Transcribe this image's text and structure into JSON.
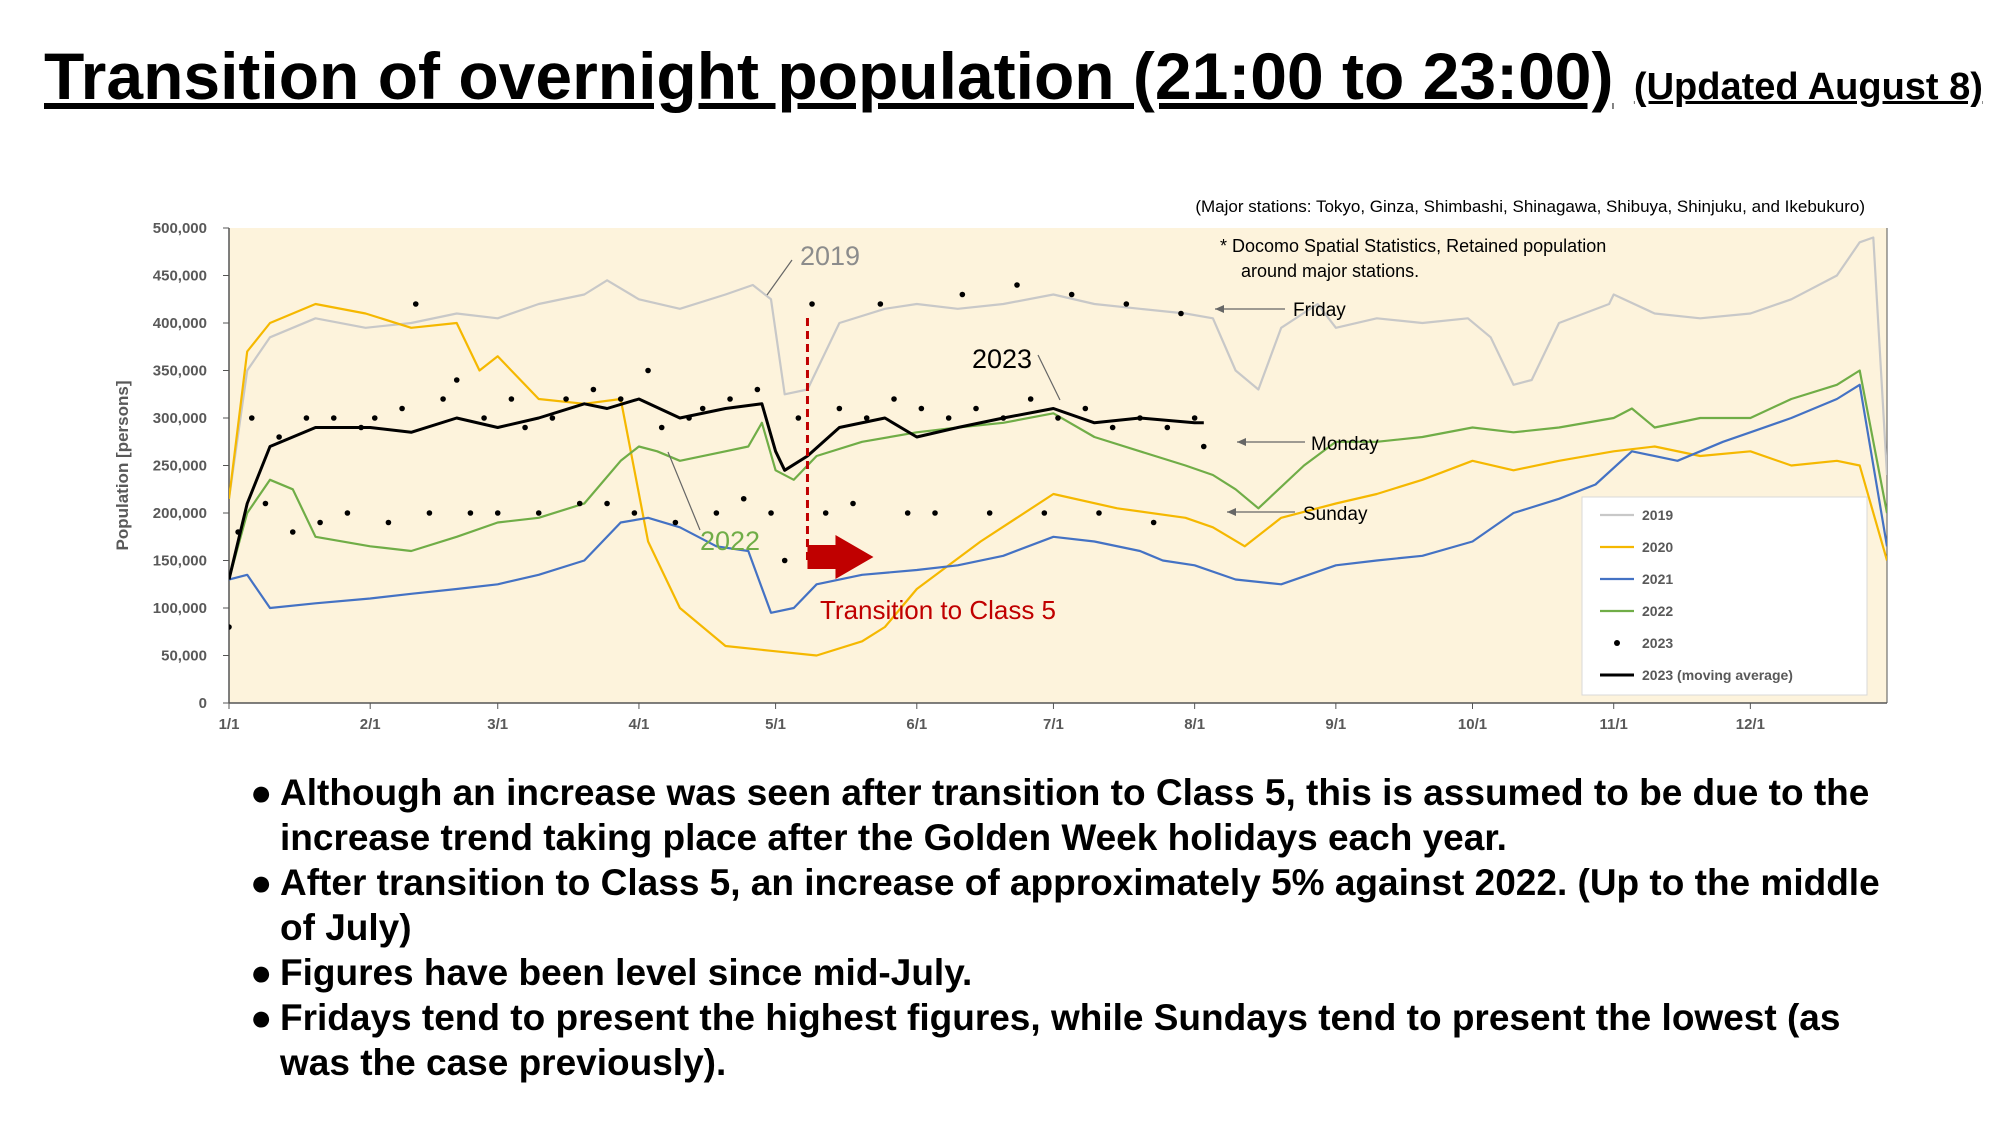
{
  "title": "Transition of overnight population (21:00 to 23:00)",
  "updated": "(Updated August 8)",
  "chart_data": {
    "type": "line",
    "subtitle": "(Major stations: Tokyo, Ginza, Shimbashi, Shinagawa, Shibuya, Shinjuku, and Ikebukuro)",
    "source_note": [
      "*  Docomo Spatial Statistics, Retained population",
      "around major stations."
    ],
    "ylabel": "Population [persons]",
    "ylim": [
      0,
      500000
    ],
    "yticks": [
      0,
      50000,
      100000,
      150000,
      200000,
      250000,
      300000,
      350000,
      400000,
      450000,
      500000
    ],
    "ytick_labels": [
      "0",
      "50,000",
      "100,000",
      "150,000",
      "200,000",
      "250,000",
      "300,000",
      "350,000",
      "400,000",
      "450,000",
      "500,000"
    ],
    "xlim": [
      "1/1",
      "12/31"
    ],
    "xticks": [
      "1/1",
      "2/1",
      "3/1",
      "4/1",
      "5/1",
      "6/1",
      "7/1",
      "8/1",
      "9/1",
      "10/1",
      "11/1",
      "12/1"
    ],
    "grid": false,
    "legend_position": "bottom-right",
    "series": [
      {
        "name": "2019",
        "color": "#c8c8c8",
        "type": "line",
        "x": [
          "1/1",
          "1/5",
          "1/10",
          "1/20",
          "1/31",
          "2/10",
          "2/20",
          "3/1",
          "3/10",
          "3/20",
          "3/25",
          "4/1",
          "4/10",
          "4/20",
          "4/26",
          "4/30",
          "5/3",
          "5/8",
          "5/15",
          "5/25",
          "6/1",
          "6/10",
          "6/20",
          "7/1",
          "7/10",
          "7/20",
          "7/30",
          "8/5",
          "8/10",
          "8/15",
          "8/20",
          "8/28",
          "9/1",
          "9/10",
          "9/20",
          "9/30",
          "10/5",
          "10/10",
          "10/14",
          "10/20",
          "10/31",
          "11/1",
          "11/10",
          "11/20",
          "12/1",
          "12/10",
          "12/20",
          "12/25",
          "12/28",
          "12/31"
        ],
        "values": [
          215000,
          350000,
          385000,
          405000,
          395000,
          400000,
          410000,
          405000,
          420000,
          430000,
          445000,
          425000,
          415000,
          430000,
          440000,
          425000,
          325000,
          330000,
          400000,
          415000,
          420000,
          415000,
          420000,
          430000,
          420000,
          415000,
          410000,
          405000,
          350000,
          330000,
          395000,
          420000,
          395000,
          405000,
          400000,
          405000,
          385000,
          335000,
          340000,
          400000,
          420000,
          430000,
          410000,
          405000,
          410000,
          425000,
          450000,
          485000,
          490000,
          240000
        ]
      },
      {
        "name": "2020",
        "color": "#f5b800",
        "type": "line",
        "x": [
          "1/1",
          "1/5",
          "1/10",
          "1/20",
          "1/31",
          "2/10",
          "2/20",
          "2/25",
          "3/1",
          "3/10",
          "3/20",
          "3/28",
          "4/3",
          "4/10",
          "4/20",
          "4/30",
          "5/10",
          "5/20",
          "5/25",
          "6/1",
          "6/15",
          "7/1",
          "7/15",
          "7/30",
          "8/5",
          "8/12",
          "8/20",
          "9/1",
          "9/10",
          "9/20",
          "10/1",
          "10/10",
          "10/20",
          "11/1",
          "11/10",
          "11/20",
          "12/1",
          "12/10",
          "12/20",
          "12/25",
          "12/31"
        ],
        "values": [
          215000,
          370000,
          400000,
          420000,
          410000,
          395000,
          400000,
          350000,
          365000,
          320000,
          315000,
          320000,
          170000,
          100000,
          60000,
          55000,
          50000,
          65000,
          80000,
          120000,
          170000,
          220000,
          205000,
          195000,
          185000,
          165000,
          195000,
          210000,
          220000,
          235000,
          255000,
          245000,
          255000,
          265000,
          270000,
          260000,
          265000,
          250000,
          255000,
          250000,
          150000
        ]
      },
      {
        "name": "2021",
        "color": "#4472c4",
        "type": "line",
        "x": [
          "1/1",
          "1/5",
          "1/10",
          "1/20",
          "2/1",
          "2/10",
          "2/20",
          "3/1",
          "3/10",
          "3/20",
          "3/28",
          "4/3",
          "4/10",
          "4/18",
          "4/25",
          "4/30",
          "5/5",
          "5/10",
          "5/20",
          "6/1",
          "6/10",
          "6/20",
          "7/1",
          "7/10",
          "7/20",
          "7/25",
          "8/1",
          "8/10",
          "8/20",
          "9/1",
          "9/10",
          "9/20",
          "10/1",
          "10/10",
          "10/20",
          "10/28",
          "11/5",
          "11/15",
          "11/25",
          "12/1",
          "12/10",
          "12/20",
          "12/25",
          "12/31"
        ],
        "values": [
          130000,
          135000,
          100000,
          105000,
          110000,
          115000,
          120000,
          125000,
          135000,
          150000,
          190000,
          195000,
          185000,
          165000,
          160000,
          95000,
          100000,
          125000,
          135000,
          140000,
          145000,
          155000,
          175000,
          170000,
          160000,
          150000,
          145000,
          130000,
          125000,
          145000,
          150000,
          155000,
          170000,
          200000,
          215000,
          230000,
          265000,
          255000,
          275000,
          285000,
          300000,
          320000,
          335000,
          165000
        ]
      },
      {
        "name": "2022",
        "color": "#70ad47",
        "type": "line",
        "x": [
          "1/1",
          "1/5",
          "1/10",
          "1/15",
          "1/20",
          "2/1",
          "2/10",
          "2/20",
          "3/1",
          "3/10",
          "3/20",
          "3/28",
          "4/1",
          "4/5",
          "4/10",
          "4/20",
          "4/25",
          "4/28",
          "5/1",
          "5/5",
          "5/10",
          "5/20",
          "6/1",
          "6/10",
          "6/20",
          "7/1",
          "7/10",
          "7/20",
          "7/30",
          "8/5",
          "8/10",
          "8/15",
          "8/25",
          "9/1",
          "9/10",
          "9/20",
          "10/1",
          "10/10",
          "10/20",
          "11/1",
          "11/5",
          "11/10",
          "11/20",
          "12/1",
          "12/10",
          "12/20",
          "12/25",
          "12/31"
        ],
        "values": [
          130000,
          200000,
          235000,
          225000,
          175000,
          165000,
          160000,
          175000,
          190000,
          195000,
          210000,
          255000,
          270000,
          265000,
          255000,
          265000,
          270000,
          295000,
          245000,
          235000,
          260000,
          275000,
          285000,
          290000,
          295000,
          305000,
          280000,
          265000,
          250000,
          240000,
          225000,
          205000,
          250000,
          275000,
          275000,
          280000,
          290000,
          285000,
          290000,
          300000,
          310000,
          290000,
          300000,
          300000,
          320000,
          335000,
          350000,
          200000
        ]
      },
      {
        "name": "2023 (moving average)",
        "color": "#000000",
        "type": "line",
        "x": [
          "1/1",
          "1/5",
          "1/10",
          "1/20",
          "2/1",
          "2/10",
          "2/20",
          "3/1",
          "3/10",
          "3/20",
          "3/25",
          "4/1",
          "4/10",
          "4/20",
          "4/28",
          "5/1",
          "5/3",
          "5/8",
          "5/15",
          "5/25",
          "6/1",
          "6/10",
          "6/20",
          "7/1",
          "7/10",
          "7/20",
          "8/1",
          "8/3"
        ],
        "values": [
          130000,
          210000,
          270000,
          290000,
          290000,
          285000,
          300000,
          290000,
          300000,
          315000,
          310000,
          320000,
          300000,
          310000,
          315000,
          265000,
          245000,
          260000,
          290000,
          300000,
          280000,
          290000,
          300000,
          310000,
          295000,
          300000,
          295000,
          295000
        ]
      },
      {
        "name": "2023",
        "color": "#000000",
        "type": "scatter",
        "x": [
          "1/1",
          "1/3",
          "1/6",
          "1/9",
          "1/12",
          "1/15",
          "1/18",
          "1/21",
          "1/24",
          "1/27",
          "1/30",
          "2/2",
          "2/5",
          "2/8",
          "2/11",
          "2/14",
          "2/17",
          "2/20",
          "2/23",
          "2/26",
          "3/1",
          "3/4",
          "3/7",
          "3/10",
          "3/13",
          "3/16",
          "3/19",
          "3/22",
          "3/25",
          "3/28",
          "3/31",
          "4/3",
          "4/6",
          "4/9",
          "4/12",
          "4/15",
          "4/18",
          "4/21",
          "4/24",
          "4/27",
          "4/30",
          "5/3",
          "5/6",
          "5/9",
          "5/12",
          "5/15",
          "5/18",
          "5/21",
          "5/24",
          "5/27",
          "5/30",
          "6/2",
          "6/5",
          "6/8",
          "6/11",
          "6/14",
          "6/17",
          "6/20",
          "6/23",
          "6/26",
          "6/29",
          "7/2",
          "7/5",
          "7/8",
          "7/11",
          "7/14",
          "7/17",
          "7/20",
          "7/23",
          "7/26",
          "7/29",
          "8/1",
          "8/3"
        ],
        "values": [
          80000,
          180000,
          300000,
          210000,
          280000,
          180000,
          300000,
          190000,
          300000,
          200000,
          290000,
          300000,
          190000,
          310000,
          420000,
          200000,
          320000,
          340000,
          200000,
          300000,
          200000,
          320000,
          290000,
          200000,
          300000,
          320000,
          210000,
          330000,
          210000,
          320000,
          200000,
          350000,
          290000,
          190000,
          300000,
          310000,
          200000,
          320000,
          215000,
          330000,
          200000,
          150000,
          300000,
          420000,
          200000,
          310000,
          210000,
          300000,
          420000,
          320000,
          200000,
          310000,
          200000,
          300000,
          430000,
          310000,
          200000,
          300000,
          440000,
          320000,
          200000,
          300000,
          430000,
          310000,
          200000,
          290000,
          420000,
          300000,
          190000,
          290000,
          410000,
          300000,
          270000
        ]
      }
    ],
    "annotations": [
      {
        "text": "2019",
        "color": "#8c8c8c"
      },
      {
        "text": "2022",
        "color": "#70ad47"
      },
      {
        "text": "2023",
        "color": "#000000"
      },
      {
        "text": "Friday",
        "color": "#000000"
      },
      {
        "text": "Monday",
        "color": "#000000"
      },
      {
        "text": "Sunday",
        "color": "#000000"
      },
      {
        "text": "Transition to Class 5",
        "color": "#c00000",
        "x": "5/8"
      }
    ],
    "background_color": "#fdf3dc"
  },
  "bullets": [
    "Although an increase was seen after transition to Class 5, this is assumed to be due to the increase trend taking place after the Golden Week holidays each year.",
    "After transition to Class 5, an increase of approximately 5% against 2022. (Up to the middle of July)",
    "Figures have been level since mid-July.",
    "Fridays tend to present the highest figures, while Sundays tend to present the lowest (as was the case previously)."
  ],
  "bullet_symbol": "●"
}
